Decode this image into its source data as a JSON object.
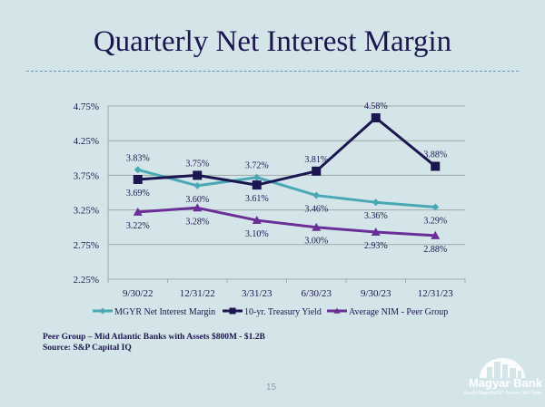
{
  "slide": {
    "title": "Quarterly Net Interest Margin",
    "footnote_1": "Peer Group – Mid Atlantic Banks with Assets $800M - $1.2B",
    "footnote_2": "Source: S&P Capital IQ",
    "page_number": "15",
    "logo_name": "Magyar Bank",
    "logo_tagline": "Simply MagnificENT for over 100 Years"
  },
  "chart_data": {
    "type": "line",
    "title": "",
    "xlabel": "",
    "ylabel": "",
    "categories": [
      "9/30/22",
      "12/31/22",
      "3/31/23",
      "6/30/23",
      "9/30/23",
      "12/31/23"
    ],
    "yticks": [
      "2.25%",
      "2.75%",
      "3.25%",
      "3.75%",
      "4.25%",
      "4.75%"
    ],
    "ylim": [
      2.25,
      4.75
    ],
    "grid": true,
    "legend_position": "bottom",
    "series": [
      {
        "name": "MGYR Net Interest Margin",
        "marker": "diamond",
        "color": "#4aa8b4",
        "values": [
          3.83,
          3.6,
          3.72,
          3.46,
          3.36,
          3.29
        ],
        "labels": [
          "3.83%",
          "3.60%",
          "3.72%",
          "3.46%",
          "3.36%",
          "3.29%"
        ],
        "label_pos": [
          "above",
          "below",
          "above",
          "below",
          "below",
          "below"
        ]
      },
      {
        "name": "10-yr. Treasury Yield",
        "marker": "square",
        "color": "#1c1650",
        "values": [
          3.69,
          3.75,
          3.61,
          3.81,
          4.58,
          3.88
        ],
        "labels": [
          "3.69%",
          "3.75%",
          "3.61%",
          "3.81%",
          "4.58%",
          "3.88%"
        ],
        "label_pos": [
          "below",
          "above",
          "below",
          "above",
          "above",
          "above"
        ]
      },
      {
        "name": "Average NIM - Peer Group",
        "marker": "triangle",
        "color": "#6a2f96",
        "values": [
          3.22,
          3.28,
          3.1,
          3.0,
          2.93,
          2.88
        ],
        "labels": [
          "3.22%",
          "3.28%",
          "3.10%",
          "3.00%",
          "2.93%",
          "2.88%"
        ],
        "label_pos": [
          "below",
          "below",
          "below",
          "below",
          "below",
          "below"
        ]
      }
    ]
  }
}
